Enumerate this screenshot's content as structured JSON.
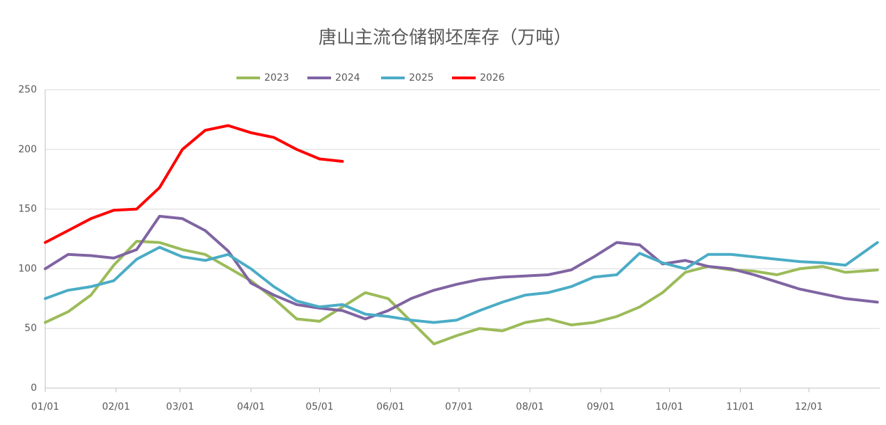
{
  "chart_data": {
    "type": "line",
    "title": "唐山主流仓储钢坯库存（万吨）",
    "x": [
      0,
      10,
      20,
      30,
      40,
      50,
      60,
      70,
      80,
      90,
      100,
      110,
      120,
      130,
      140,
      150,
      160,
      170,
      180,
      190,
      200,
      210,
      220,
      230,
      240,
      250,
      260,
      270,
      280,
      290,
      300,
      310,
      320,
      330,
      340,
      350,
      364
    ],
    "xlim": [
      0,
      365
    ],
    "xticks": [
      {
        "value": 0,
        "label": "01/01"
      },
      {
        "value": 31,
        "label": "02/01"
      },
      {
        "value": 59,
        "label": "03/01"
      },
      {
        "value": 90,
        "label": "04/01"
      },
      {
        "value": 120,
        "label": "05/01"
      },
      {
        "value": 151,
        "label": "06/01"
      },
      {
        "value": 181,
        "label": "07/01"
      },
      {
        "value": 212,
        "label": "08/01"
      },
      {
        "value": 243,
        "label": "09/01"
      },
      {
        "value": 273,
        "label": "10/01"
      },
      {
        "value": 304,
        "label": "11/01"
      },
      {
        "value": 334,
        "label": "12/01"
      }
    ],
    "ylim": [
      0,
      250
    ],
    "yticks": [
      0,
      50,
      100,
      150,
      200,
      250
    ],
    "grid": true,
    "legend": "top",
    "series": [
      {
        "name": "2023",
        "color": "#9bbb59",
        "values": [
          55,
          64,
          78,
          103,
          123,
          122,
          116,
          112,
          101,
          90,
          75,
          58,
          56,
          68,
          80,
          75,
          56,
          37,
          44,
          50,
          48,
          55,
          58,
          53,
          55,
          60,
          68,
          80,
          97,
          102,
          99,
          98,
          95,
          100,
          102,
          97,
          99
        ]
      },
      {
        "name": "2024",
        "color": "#8064a2",
        "values": [
          100,
          112,
          111,
          109,
          116,
          144,
          142,
          132,
          115,
          88,
          78,
          70,
          67,
          65,
          58,
          65,
          75,
          82,
          87,
          91,
          93,
          94,
          95,
          99,
          110,
          122,
          120,
          104,
          107,
          102,
          100,
          95,
          89,
          83,
          79,
          75,
          72
        ]
      },
      {
        "name": "2025",
        "color": "#4bacc6",
        "values": [
          75,
          82,
          85,
          90,
          108,
          118,
          110,
          107,
          112,
          100,
          85,
          73,
          68,
          70,
          62,
          60,
          57,
          55,
          57,
          65,
          72,
          78,
          80,
          85,
          93,
          95,
          113,
          105,
          100,
          112,
          112,
          110,
          108,
          106,
          105,
          103,
          122
        ]
      },
      {
        "name": "2026",
        "color": "#ff0000",
        "values": [
          122,
          132,
          142,
          149,
          150,
          168,
          200,
          216,
          220,
          214,
          210,
          200,
          192,
          190,
          null,
          null,
          null,
          null,
          null,
          null,
          null,
          null,
          null,
          null,
          null,
          null,
          null,
          null,
          null,
          null,
          null,
          null,
          null,
          null,
          null,
          null,
          null
        ]
      }
    ]
  }
}
